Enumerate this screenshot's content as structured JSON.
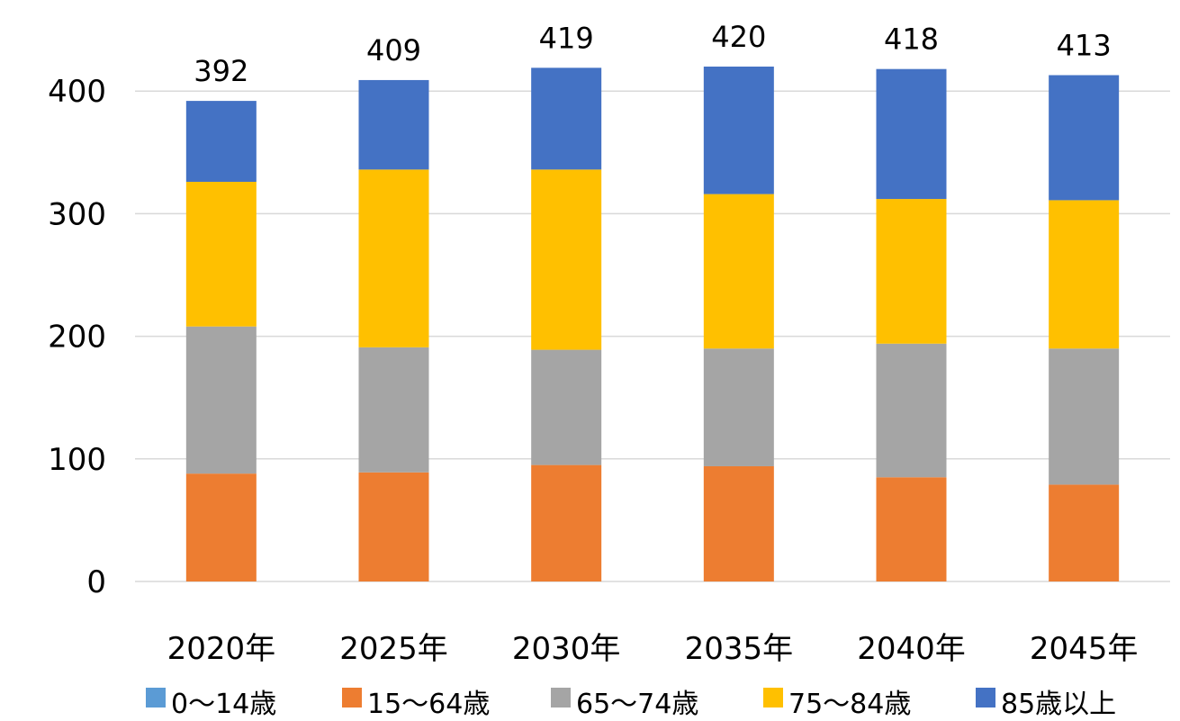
{
  "chart_data": {
    "type": "bar",
    "stacked": true,
    "categories": [
      "2020年",
      "2025年",
      "2030年",
      "2035年",
      "2040年",
      "2045年"
    ],
    "series": [
      {
        "name": "0～14歳",
        "color": "#5B9BD5",
        "values": [
          0,
          0,
          0,
          0,
          0,
          0
        ]
      },
      {
        "name": "15～64歳",
        "color": "#ED7D31",
        "values": [
          88,
          89,
          95,
          94,
          85,
          79
        ]
      },
      {
        "name": "65～74歳",
        "color": "#A5A5A5",
        "values": [
          120,
          102,
          94,
          96,
          109,
          111
        ]
      },
      {
        "name": "75～84歳",
        "color": "#FFC000",
        "values": [
          118,
          145,
          147,
          126,
          118,
          121
        ]
      },
      {
        "name": "85歳以上",
        "color": "#4472C4",
        "values": [
          66,
          73,
          83,
          104,
          106,
          102
        ]
      }
    ],
    "totals": [
      "392",
      "409",
      "419",
      "420",
      "418",
      "413"
    ],
    "y_ticks": [
      "0",
      "100",
      "200",
      "300",
      "400"
    ],
    "ylim": [
      0,
      400
    ],
    "grid": true,
    "legend_position": "bottom"
  }
}
